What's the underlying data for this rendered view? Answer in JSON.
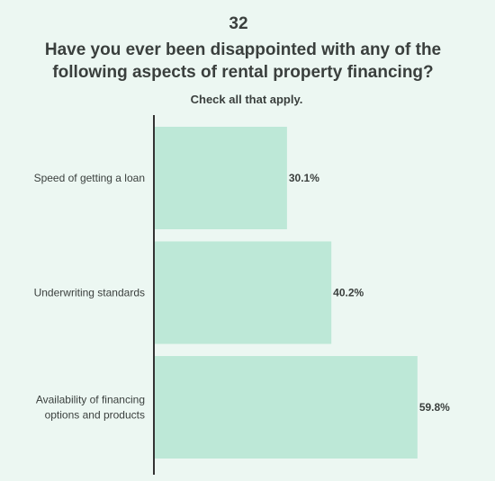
{
  "chart_data": {
    "type": "bar",
    "orientation": "horizontal",
    "number": "32",
    "title": "Have you ever been disappointed with any of the following aspects of rental property financing?",
    "title_lines": [
      "Have you ever been disappointed with any of the",
      "following aspects of rental property financing?"
    ],
    "subtitle": "Check all that apply.",
    "categories": [
      "Speed of getting a loan",
      "Underwriting standards",
      "Availability of financing options and products"
    ],
    "category_lines": [
      [
        "Speed of getting a loan"
      ],
      [
        "Underwriting standards"
      ],
      [
        "Availability of financing",
        "options and products"
      ]
    ],
    "values": [
      30.1,
      40.2,
      59.8
    ],
    "value_labels": [
      "30.1%",
      "40.2%",
      "59.8%"
    ],
    "unit": "%",
    "xlim": [
      0,
      100
    ],
    "grid": false,
    "legend": "none",
    "colors": {
      "background": "#ecf7f2",
      "bar": "#bde8d7",
      "axis": "#333333",
      "text": "#3a3f3d"
    }
  }
}
